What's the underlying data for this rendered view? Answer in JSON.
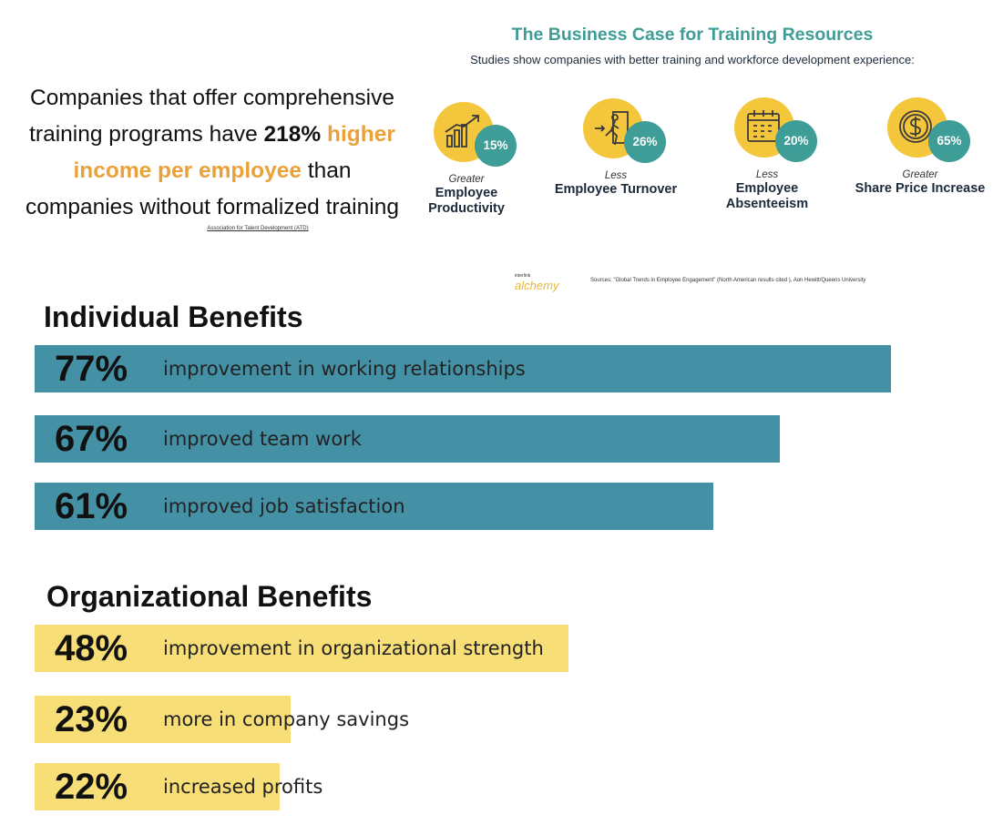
{
  "quote": {
    "part1": "Companies that offer comprehensive training programs have ",
    "bold": "218%",
    "space": " ",
    "highlight": "higher income per employee",
    "part2": " than companies without formalized training",
    "source": "Association for Talent Development (ATD)"
  },
  "infographic": {
    "title": "The Business Case for Training Resources",
    "subtitle": "Studies show companies with better training and workforce development experience:",
    "stats": [
      {
        "value": "15%",
        "qualifier": "Greater",
        "name": "Employee Productivity",
        "icon": "growth-chart-icon"
      },
      {
        "value": "26%",
        "qualifier": "Less",
        "name": "Employee Turnover",
        "icon": "person-leaving-door-icon"
      },
      {
        "value": "20%",
        "qualifier": "Less",
        "name": "Employee Absenteeism",
        "icon": "calendar-icon"
      },
      {
        "value": "65%",
        "qualifier": "Greater",
        "name": "Share Price Increase",
        "icon": "dollar-coin-icon"
      }
    ],
    "brand_small": "interlink",
    "brand": "alchemy",
    "sources": "Sources: \"Global Trends in Employee Engagement\" (North American results cited ), Aon Hewitt/Queens University"
  },
  "colors": {
    "teal": "#3e9d96",
    "yellow": "#f4c63b",
    "orange_highlight": "#e9a23b",
    "individual_bar": "#4491a6",
    "organizational_bar": "#f8de76"
  },
  "chart_data": [
    {
      "type": "bar",
      "orientation": "horizontal",
      "title": "Individual Benefits",
      "categories": [
        "improvement in working relationships",
        "improved team work",
        "improved job satisfaction"
      ],
      "value_labels": [
        "77%",
        "67%",
        "61%"
      ],
      "values": [
        77,
        67,
        61
      ],
      "color": "#4491a6"
    },
    {
      "type": "bar",
      "orientation": "horizontal",
      "title": "Organizational Benefits",
      "categories": [
        "improvement in organizational strength",
        "more in company savings",
        "increased profits"
      ],
      "value_labels": [
        "48%",
        "23%",
        "22%"
      ],
      "values": [
        48,
        23,
        22
      ],
      "color": "#f8de76"
    }
  ]
}
